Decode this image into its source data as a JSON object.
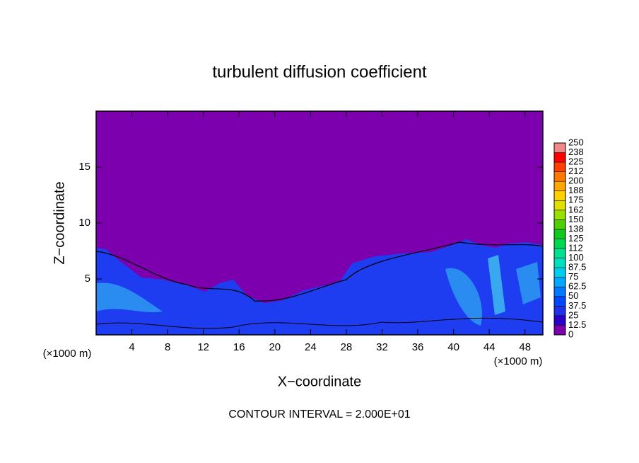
{
  "chart_data": {
    "type": "contour",
    "title": "turbulent diffusion coefficient",
    "xlabel": "X−coordinate",
    "ylabel": "Z−coordinate",
    "unit_labels": [
      "(×1000 m)",
      "(×1000 m)"
    ],
    "footer": "CONTOUR INTERVAL = 2.000E+01",
    "xlim": [
      0,
      50
    ],
    "xticks": [
      4,
      8,
      12,
      16,
      20,
      24,
      28,
      32,
      36,
      40,
      44,
      48
    ],
    "ylim": [
      0,
      20
    ],
    "yticks": [
      5,
      10,
      15
    ],
    "background_color": "#7c00ae",
    "colorbar": {
      "levels": [
        0,
        12.5,
        25,
        37.5,
        50,
        62.5,
        75,
        87.5,
        100,
        {
          "value": 112.5,
          "label": "112"
        },
        125,
        {
          "value": 137.5,
          "label": "138"
        },
        150,
        {
          "value": 162.5,
          "label": "162"
        },
        175,
        {
          "value": 187.5,
          "label": "188"
        },
        200,
        {
          "value": 212.5,
          "label": "212"
        },
        225,
        {
          "value": 237.5,
          "label": "238"
        },
        250
      ],
      "colors": [
        "#7c00ae",
        "#2a00c8",
        "#2030e8",
        "#0048ff",
        "#0078ff",
        "#00a8ff",
        "#00d0f0",
        "#00e0c0",
        "#00e090",
        "#00d850",
        "#10c820",
        "#50d000",
        "#98e000",
        "#e0e000",
        "#ffd000",
        "#ffa800",
        "#ff7800",
        "#ff4000",
        "#ff0000",
        "#f08888"
      ]
    }
  }
}
